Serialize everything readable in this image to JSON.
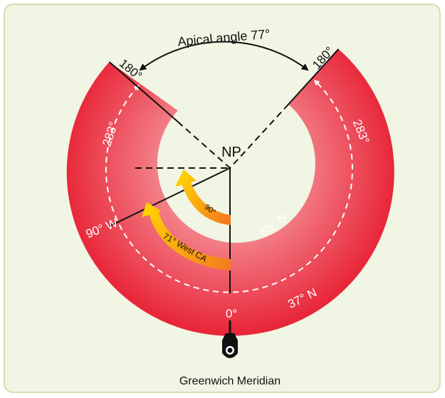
{
  "diagram": {
    "top_label": "Apical angle 77°",
    "center_label": "NP",
    "left_arc_degree": "180°",
    "right_arc_degree": "180°",
    "left_side_degree": "283°",
    "right_side_degree": "283°",
    "west_meridian": "90° W",
    "inner_parallel": "65° N",
    "outer_parallel": "37° N",
    "bottom_degree": "0°",
    "arrow_inner": "90°",
    "arrow_outer": "71° West CA",
    "footer_label": "Greenwich Meridian"
  },
  "colors": {
    "background": "#f1f5e3",
    "border": "#c6d89a",
    "ring_outer": "#e8283a",
    "ring_inner": "#f48a91",
    "inner_disk": "#f1f5e3",
    "arrow_start": "#ffd200",
    "arrow_end": "#f47a20"
  },
  "icons": [
    "pivot-knob-icon"
  ]
}
